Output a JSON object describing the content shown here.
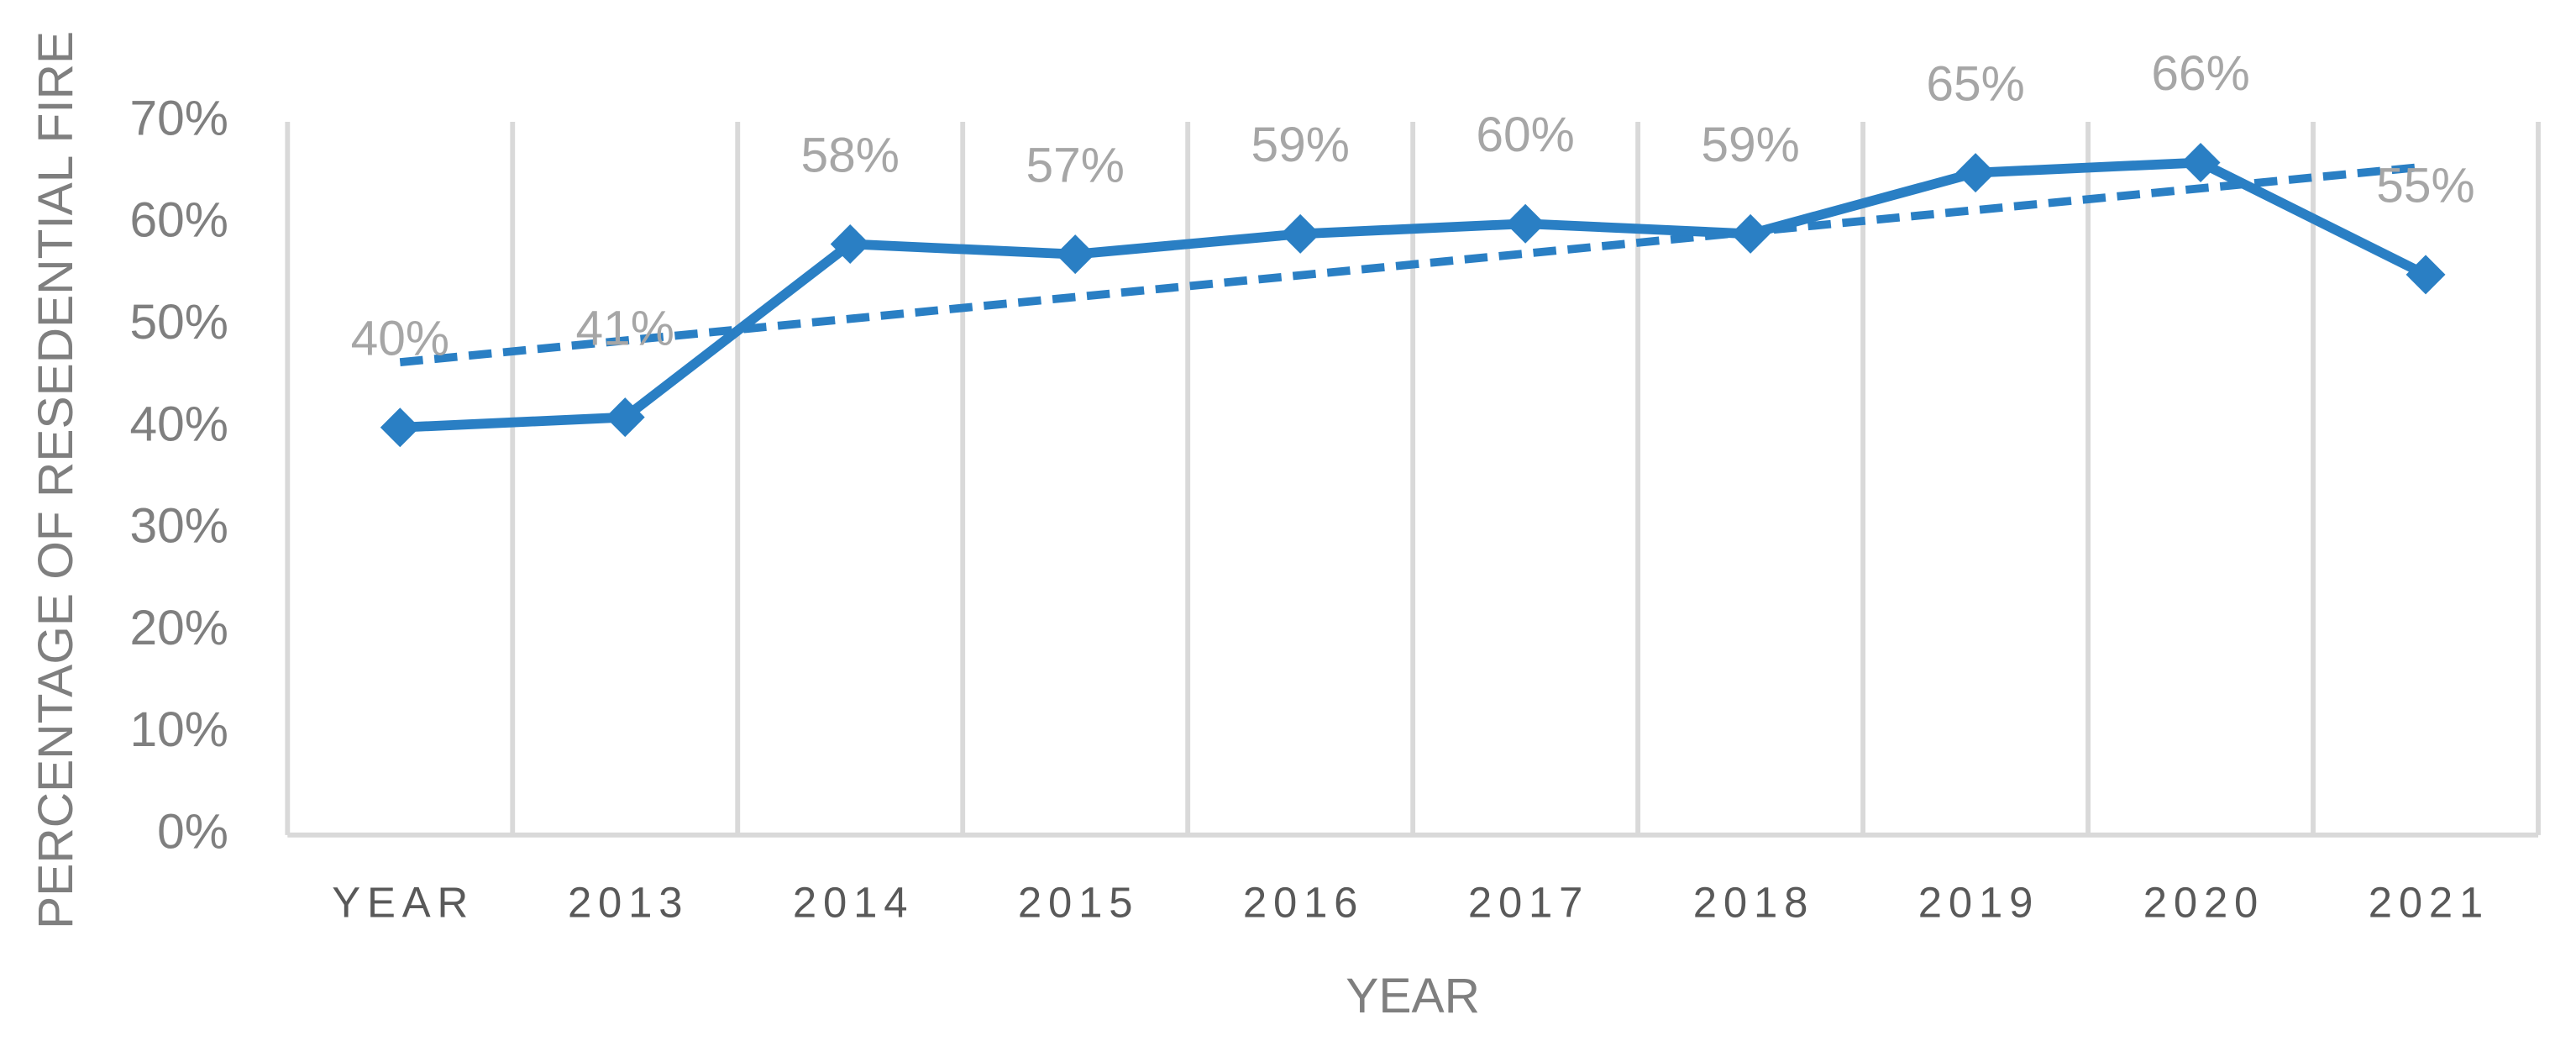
{
  "chart_data": {
    "type": "line",
    "x_label": "YEAR",
    "y_label": "PERCENTAGE OF RESEDENTIAL FIRE",
    "categories": [
      "YEAR",
      "2013",
      "2014",
      "2015",
      "2016",
      "2017",
      "2018",
      "2019",
      "2020",
      "2021"
    ],
    "series": [
      {
        "color": "#2a7fc4",
        "values": [
          40,
          41,
          58,
          57,
          59,
          60,
          59,
          65,
          66,
          55
        ],
        "value_labels": [
          "40%",
          "41%",
          "58%",
          "57%",
          "59%",
          "60%",
          "59%",
          "65%",
          "66%",
          "55%"
        ]
      }
    ],
    "trendline": {
      "kind": "linear",
      "color": "#2a7fc4"
    },
    "ylim": [
      0,
      70
    ],
    "yticks": [
      {
        "value": 0,
        "label": "0%"
      },
      {
        "value": 10,
        "label": "10%"
      },
      {
        "value": 20,
        "label": "20%"
      },
      {
        "value": 30,
        "label": "30%"
      },
      {
        "value": 40,
        "label": "40%"
      },
      {
        "value": 50,
        "label": "50%"
      },
      {
        "value": 60,
        "label": "60%"
      },
      {
        "value": 70,
        "label": "70%"
      }
    ],
    "grid": "vertical"
  }
}
